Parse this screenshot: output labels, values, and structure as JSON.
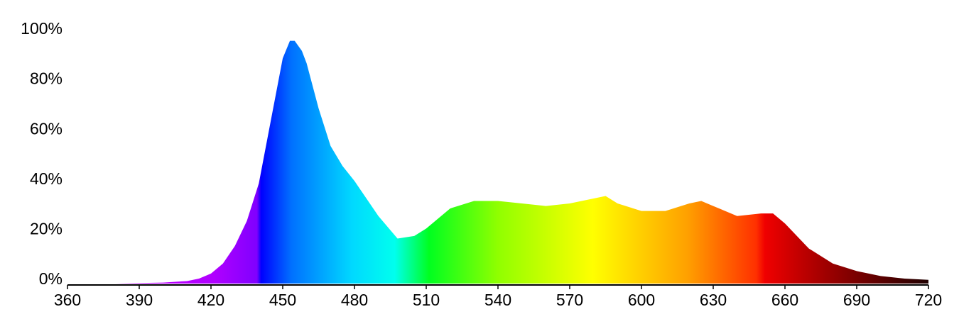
{
  "chart_data": {
    "type": "area",
    "x": [
      360,
      370,
      380,
      390,
      400,
      410,
      415,
      420,
      425,
      430,
      435,
      440,
      445,
      450,
      453,
      455,
      458,
      460,
      465,
      470,
      475,
      480,
      490,
      498,
      505,
      510,
      520,
      530,
      540,
      550,
      560,
      570,
      580,
      585,
      590,
      600,
      610,
      620,
      625,
      630,
      640,
      650,
      655,
      660,
      670,
      680,
      690,
      700,
      710,
      720
    ],
    "values": [
      0,
      0,
      0,
      0.2,
      0.4,
      1,
      2,
      4,
      8,
      15,
      25,
      40,
      65,
      90,
      97,
      97,
      93,
      88,
      70,
      55,
      47,
      41,
      27,
      18,
      19,
      22,
      30,
      33,
      33,
      32,
      31,
      32,
      34,
      35,
      32,
      29,
      29,
      32,
      33,
      31,
      27,
      28,
      28,
      24,
      14,
      8,
      5,
      3,
      2,
      1.5
    ],
    "xlim": [
      360,
      720
    ],
    "ylim": [
      0,
      100
    ],
    "xticks": [
      360,
      390,
      420,
      450,
      480,
      510,
      540,
      570,
      600,
      630,
      660,
      690,
      720
    ],
    "yticks": [
      {
        "value": 0,
        "label": "0%"
      },
      {
        "value": 20,
        "label": "20%"
      },
      {
        "value": 40,
        "label": "40%"
      },
      {
        "value": 60,
        "label": "60%"
      },
      {
        "value": 80,
        "label": "80%"
      },
      {
        "value": 100,
        "label": "100%"
      }
    ]
  }
}
